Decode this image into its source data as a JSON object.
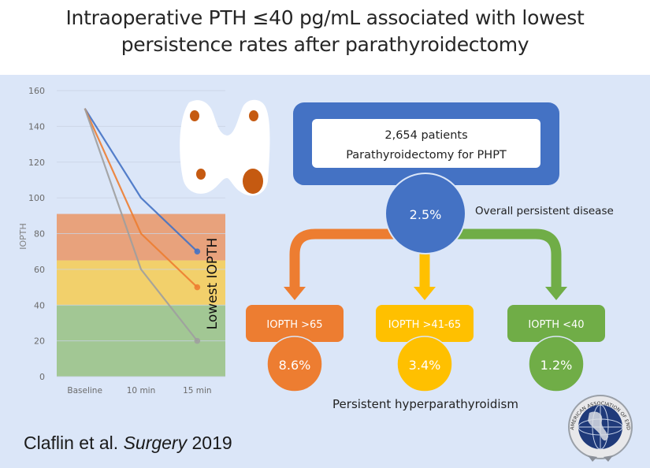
{
  "title_line1": "Intraoperative PTH ≤40 pg/mL associated with lowest",
  "title_line2": "persistence rates after parathyroidectomy",
  "chart_data": {
    "type": "line",
    "title": "",
    "xlabel": "",
    "ylabel": "IOPTH",
    "categories": [
      "Baseline",
      "10 min",
      "15 min"
    ],
    "ylim": [
      0,
      160
    ],
    "yticks": [
      0,
      20,
      40,
      60,
      80,
      100,
      120,
      140,
      160
    ],
    "grid": true,
    "series": [
      {
        "name": "blue",
        "color": "#4472c4",
        "values": [
          150,
          100,
          70
        ]
      },
      {
        "name": "orange",
        "color": "#ed7d31",
        "values": [
          150,
          80,
          50
        ]
      },
      {
        "name": "gray",
        "color": "#9e9e9e",
        "values": [
          150,
          60,
          20
        ]
      }
    ],
    "bands": [
      {
        "from": 65,
        "to": 91,
        "color": "#e8a27c",
        "label": "IOPTH >65"
      },
      {
        "from": 40,
        "to": 65,
        "color": "#f2d06b",
        "label": "IOPTH 41-65"
      },
      {
        "from": 0,
        "to": 40,
        "color": "#a2c794",
        "label": "IOPTH <40"
      }
    ],
    "annotation": "Lowest IOPTH"
  },
  "flow": {
    "top_line1": "2,654 patients",
    "top_line2": "Parathyroidectomy for PHPT",
    "overall_value": "2.5%",
    "overall_label": "Overall persistent disease",
    "branches": [
      {
        "label": "IOPTH >65",
        "value": "8.6%",
        "color": "#ed7d31"
      },
      {
        "label": "IOPTH >41-65",
        "value": "3.4%",
        "color": "#ffc000"
      },
      {
        "label": "IOPTH <40",
        "value": "1.2%",
        "color": "#70ad47"
      }
    ],
    "footer_label": "Persistent hyperparathyroidism"
  },
  "citation": {
    "authors": "Claflin et al. ",
    "journal": "Surgery",
    "year": " 2019"
  },
  "logo": {
    "text": "AMERICAN ASSOCIATION OF ENDOCRINE SURGEONS"
  },
  "colors": {
    "blue": "#4472c4",
    "orange": "#ed7d31",
    "yellow": "#ffc000",
    "green": "#70ad47",
    "background": "#dbe6f8"
  }
}
